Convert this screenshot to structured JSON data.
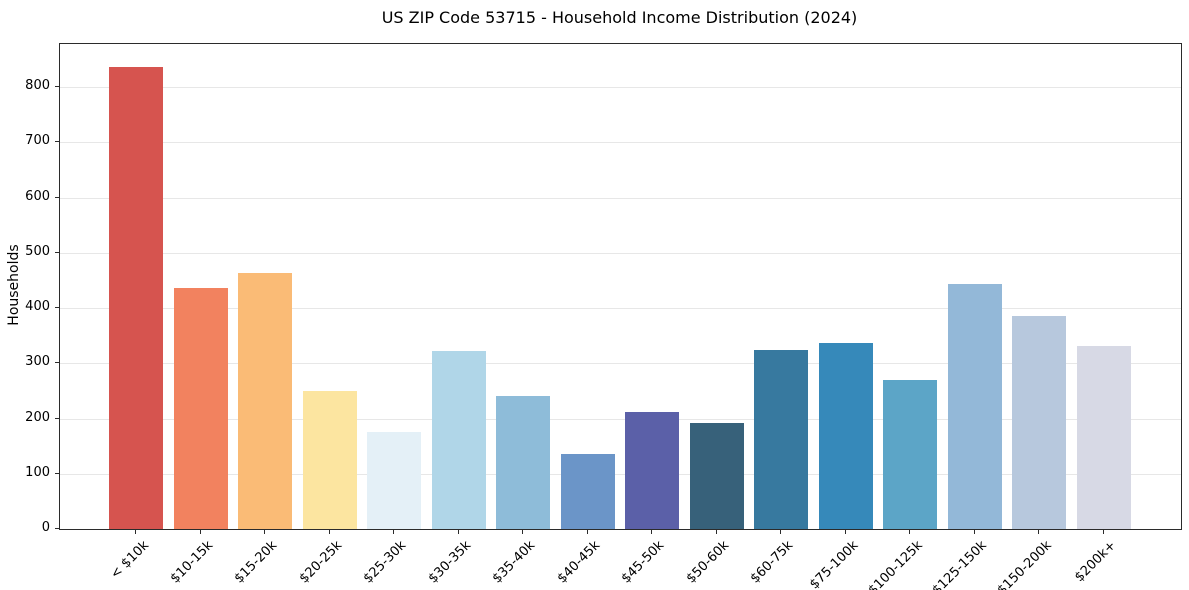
{
  "figure": {
    "background": "#ffffff"
  },
  "chart_data": {
    "type": "bar",
    "title": "US ZIP Code 53715 - Household Income Distribution (2024)",
    "xlabel": "",
    "ylabel": "Households",
    "categories": [
      "< $10k",
      "$10-15k",
      "$15-20k",
      "$20-25k",
      "$25-30k",
      "$30-35k",
      "$35-40k",
      "$40-45k",
      "$45-50k",
      "$50-60k",
      "$60-75k",
      "$75-100k",
      "$100-125k",
      "$125-150k",
      "$150-200k",
      "$200k+"
    ],
    "values": [
      836,
      436,
      463,
      250,
      176,
      322,
      240,
      136,
      212,
      192,
      325,
      336,
      270,
      444,
      385,
      332
    ],
    "bar_colors": [
      "#d6544f",
      "#f2825f",
      "#fabb76",
      "#fce5a0",
      "#e4f0f7",
      "#b0d6e8",
      "#8ebcd9",
      "#6b95c8",
      "#5b60a8",
      "#37617a",
      "#37799f",
      "#3689ba",
      "#5ca5c7",
      "#93b8d8",
      "#b7c8dd",
      "#d7d9e5"
    ],
    "ylim": [
      0,
      878
    ],
    "yticks": [
      0,
      100,
      200,
      300,
      400,
      500,
      600,
      700,
      800
    ],
    "xtick_rotation": 45,
    "grid": "horizontal",
    "grid_color": "#e7e7e7",
    "axis_color": "#2b2b2b",
    "text_color": "#000000",
    "legend": "none"
  }
}
